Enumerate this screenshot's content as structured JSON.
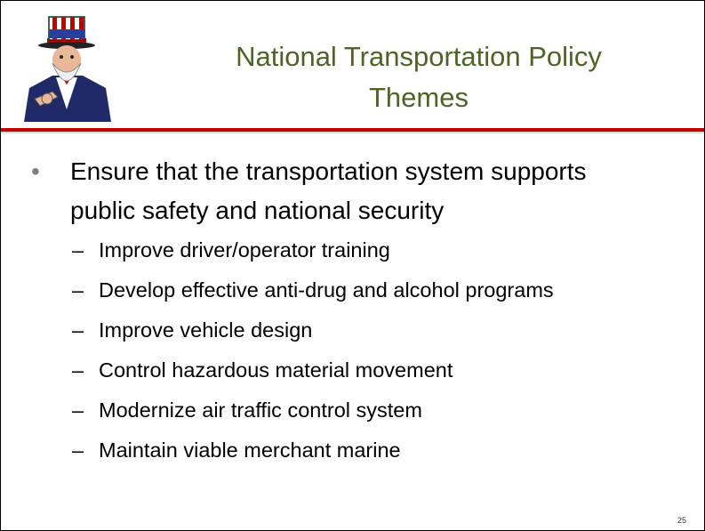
{
  "header": {
    "title_lines": [
      "National Transportation Policy",
      "Themes"
    ]
  },
  "bullets": [
    {
      "text": "Ensure that the transportation system supports public safety and national security",
      "subitems": [
        "Improve driver/operator training",
        "Develop effective anti-drug and alcohol programs",
        "Improve vehicle design",
        "Control hazardous material movement",
        "Modernize air traffic control system",
        "Maintain viable merchant marine"
      ]
    }
  ],
  "footer": {
    "page_number": "25"
  }
}
